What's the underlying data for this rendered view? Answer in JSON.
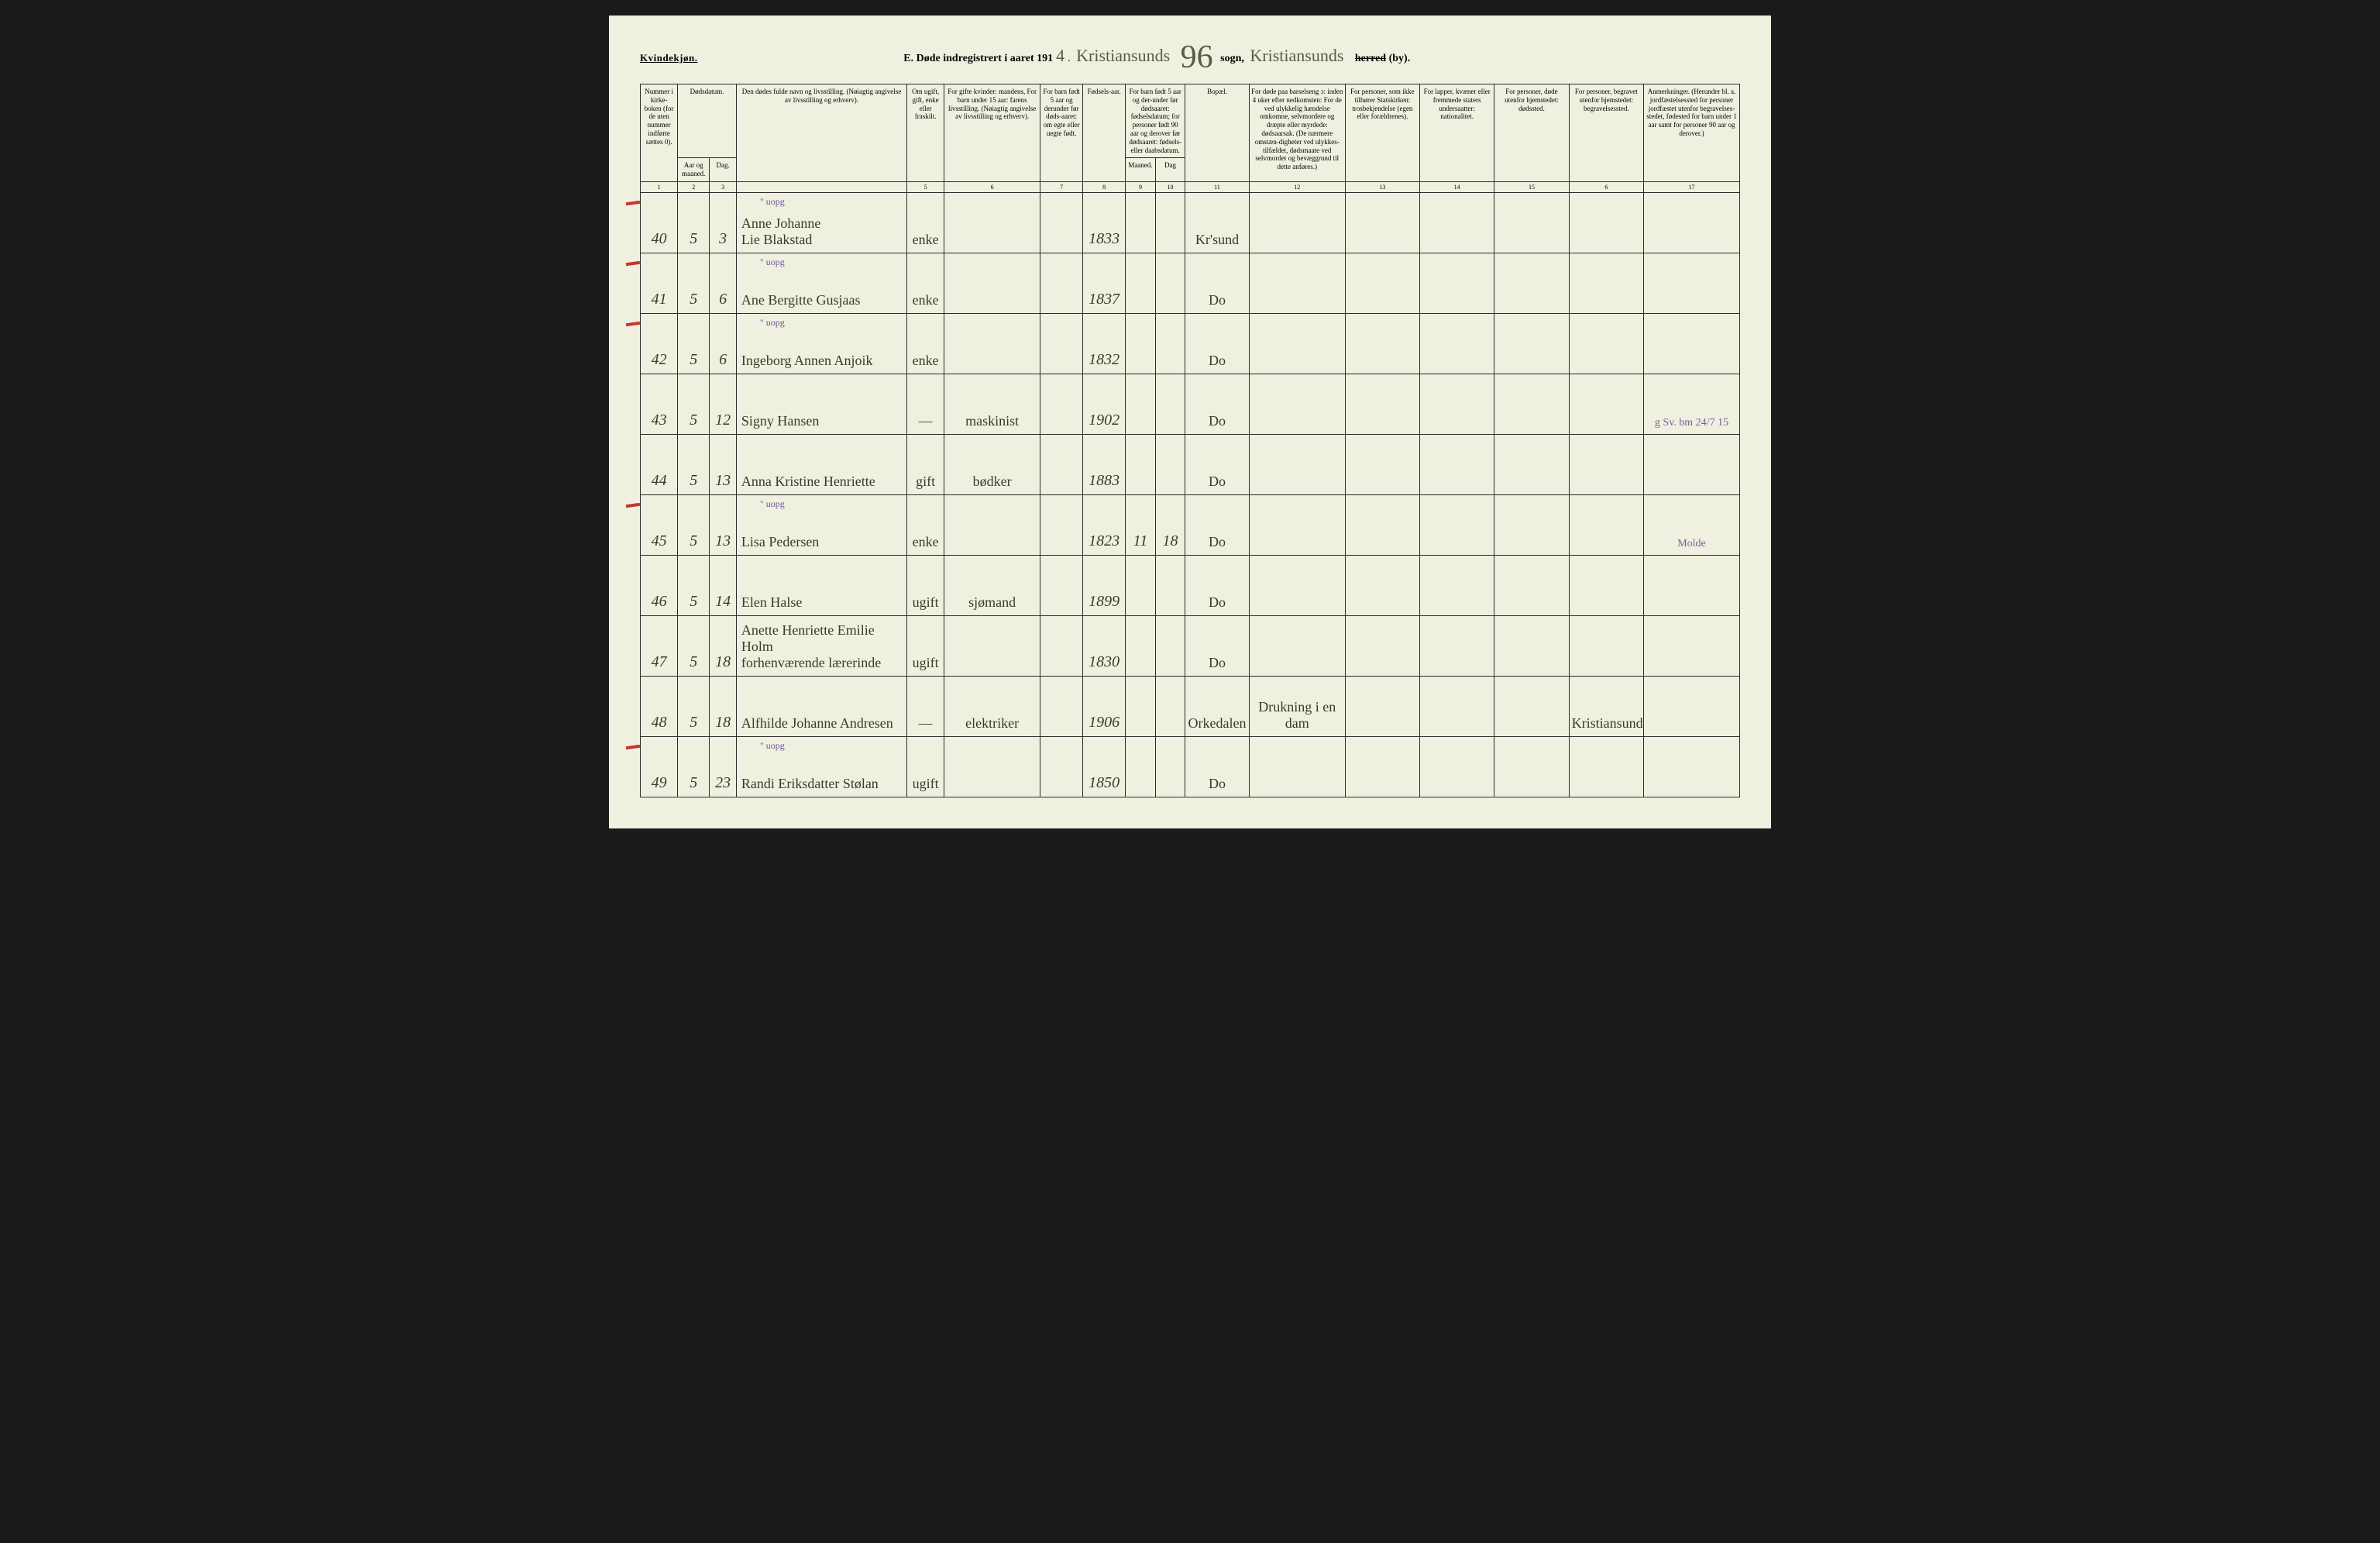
{
  "header": {
    "gender": "Kvindekjøn.",
    "title_prefix": "E.  Døde indregistrert i aaret 191",
    "year_suffix": "4",
    "punct": ".",
    "parish_written": "Kristiansunds",
    "big_number": "96",
    "sogn_label": "sogn,",
    "herred_written": "Kristiansunds",
    "herred_strike": "herred",
    "herred_suffix": " (by)."
  },
  "colheaders": {
    "c1": "Nummer i kirke-boken (for de uten nummer indførte sættes 0).",
    "c2_top": "Dødsdatum.",
    "c2a": "Aar og maaned.",
    "c2b": "Dag.",
    "c3": "Den dødes fulde navn og livsstilling.\n(Nøiagtig angivelse av livsstilling og erhverv).",
    "c4": "Om ugift, gift, enke eller fraskilt.",
    "c5": "For gifte kvinder: mandens,\nFor barn under 15 aar: farens livsstilling.\n(Nøiagtig angivelse av livsstilling og erhverv).",
    "c6": "For barn født 5 aar og derunder før døds-aaret: om egte eller uegte født.",
    "c7": "Fødsels-aar.",
    "c8_top": "For barn født 5 aar og der-under før dødsaaret: fødselsdatum; for personer født 90 aar og derover før dødsaaret: fødsels- eller daabsdatum.",
    "c8a": "Maaned.",
    "c8b": "Dag",
    "c9": "Bopæl.",
    "c10": "For døde paa barselseng ɔ: inden 4 uker efter nedkomsten:\nFor de ved ulykkelig hændelse omkomne, selvmordere og dræpte eller myrdede: dødsaarsak.\n(De nærmere omstæn-digheter ved ulykkes-tilfældet, dødsmaate ved selvmordet og bevæggrund til dette anføres.)",
    "c11": "For personer, som ikke tilhører Statskirken: trosbekjendelse (egen eller forældrenes).",
    "c12": "For lapper, kvæner eller fremmede staters undersaatter: nationalitet.",
    "c13": "For personer, døde utenfor hjemstedet: dødssted.",
    "c14": "For personer, begravet utenfor hjemstedet: begravelsessted.",
    "c15": "Anmerkninger.\n(Herunder bl. a. jordfæstelsessted for personer jordfæstet utenfor begravelses-stedet, fødested for barn under 1 aar samt for personer 90 aar og derover.)"
  },
  "colnums": [
    "1",
    "2",
    "3",
    "",
    "5",
    "6",
    "7",
    "8",
    "9",
    "10",
    "11",
    "12",
    "13",
    "14",
    "15",
    "6",
    "17"
  ],
  "rows": [
    {
      "num": "40",
      "mnd": "5",
      "dag": "3",
      "name": "Anne Johanne\nLie Blakstad",
      "sup": "\" uopg",
      "status": "enke",
      "occ": "",
      "egte": "",
      "faar": "1833",
      "fmnd": "",
      "fdag": "",
      "bopal": "Kr'sund",
      "cause": "",
      "c11": "",
      "c12": "",
      "c13": "",
      "c14": "",
      "c15": "",
      "red": true
    },
    {
      "num": "41",
      "mnd": "5",
      "dag": "6",
      "name": "Ane Bergitte Gusjaas",
      "sup": "\" uopg",
      "status": "enke",
      "occ": "",
      "egte": "",
      "faar": "1837",
      "fmnd": "",
      "fdag": "",
      "bopal": "Do",
      "cause": "",
      "c11": "",
      "c12": "",
      "c13": "",
      "c14": "",
      "c15": "",
      "red": true
    },
    {
      "num": "42",
      "mnd": "5",
      "dag": "6",
      "name": "Ingeborg Annen Anjoik",
      "sup": "\" uopg",
      "status": "enke",
      "occ": "",
      "egte": "",
      "faar": "1832",
      "fmnd": "",
      "fdag": "",
      "bopal": "Do",
      "cause": "",
      "c11": "",
      "c12": "",
      "c13": "",
      "c14": "",
      "c15": "",
      "red": true
    },
    {
      "num": "43",
      "mnd": "5",
      "dag": "12",
      "name": "Signy Hansen",
      "sup": "",
      "status": "—",
      "occ": "maskinist",
      "egte": "",
      "faar": "1902",
      "fmnd": "",
      "fdag": "",
      "bopal": "Do",
      "cause": "",
      "c11": "",
      "c12": "",
      "c13": "",
      "c14": "",
      "c15": "g Sv. bm 24/7 15",
      "red": false
    },
    {
      "num": "44",
      "mnd": "5",
      "dag": "13",
      "name": "Anna Kristine Henriette",
      "sup": "",
      "status": "gift",
      "occ": "bødker",
      "egte": "",
      "faar": "1883",
      "fmnd": "",
      "fdag": "",
      "bopal": "Do",
      "cause": "",
      "c11": "",
      "c12": "",
      "c13": "",
      "c14": "",
      "c15": "",
      "red": false
    },
    {
      "num": "45",
      "mnd": "5",
      "dag": "13",
      "name": "Lisa Pedersen",
      "sup": "\" uopg",
      "status": "enke",
      "occ": "",
      "egte": "",
      "faar": "1823",
      "fmnd": "11",
      "fdag": "18",
      "bopal": "Do",
      "cause": "",
      "c11": "",
      "c12": "",
      "c13": "",
      "c14": "",
      "c15": "Molde",
      "red": true
    },
    {
      "num": "46",
      "mnd": "5",
      "dag": "14",
      "name": "Elen Halse",
      "sup": "",
      "status": "ugift",
      "occ": "sjømand",
      "egte": "",
      "faar": "1899",
      "fmnd": "",
      "fdag": "",
      "bopal": "Do",
      "cause": "",
      "c11": "",
      "c12": "",
      "c13": "",
      "c14": "",
      "c15": "",
      "red": false
    },
    {
      "num": "47",
      "mnd": "5",
      "dag": "18",
      "name": "Anette Henriette Emilie Holm\nforhenværende lærerinde",
      "sup": "",
      "status": "ugift",
      "occ": "",
      "egte": "",
      "faar": "1830",
      "fmnd": "",
      "fdag": "",
      "bopal": "Do",
      "cause": "",
      "c11": "",
      "c12": "",
      "c13": "",
      "c14": "",
      "c15": "",
      "red": false
    },
    {
      "num": "48",
      "mnd": "5",
      "dag": "18",
      "name": "Alfhilde Johanne Andresen",
      "sup": "",
      "status": "—",
      "occ": "elektriker",
      "egte": "",
      "faar": "1906",
      "fmnd": "",
      "fdag": "",
      "bopal": "Orkedalen",
      "cause": "Drukning i en dam",
      "c11": "",
      "c12": "",
      "c13": "",
      "c14": "Kristiansund",
      "c15": "",
      "red": false
    },
    {
      "num": "49",
      "mnd": "5",
      "dag": "23",
      "name": "Randi Eriksdatter Stølan",
      "sup": "\" uopg",
      "status": "ugift",
      "occ": "",
      "egte": "",
      "faar": "1850",
      "fmnd": "",
      "fdag": "",
      "bopal": "Do",
      "cause": "",
      "c11": "",
      "c12": "",
      "c13": "",
      "c14": "",
      "c15": "",
      "red": true
    }
  ],
  "widths": {
    "c1": "3.5%",
    "c2a": "3%",
    "c2b": "2.5%",
    "c3": "16%",
    "c4": "3.5%",
    "c5": "9%",
    "c6": "4%",
    "c7": "4%",
    "c8a": "2.8%",
    "c8b": "2.8%",
    "c9": "6%",
    "c10": "9%",
    "c11": "7%",
    "c12": "7%",
    "c13": "7%",
    "c14": "7%",
    "c15": "9%"
  },
  "colors": {
    "paper": "#f0f0e0",
    "ink": "#2a2a2a",
    "script": "#3a3a2a",
    "purple": "#7a5a9a",
    "red": "#c0392b"
  }
}
